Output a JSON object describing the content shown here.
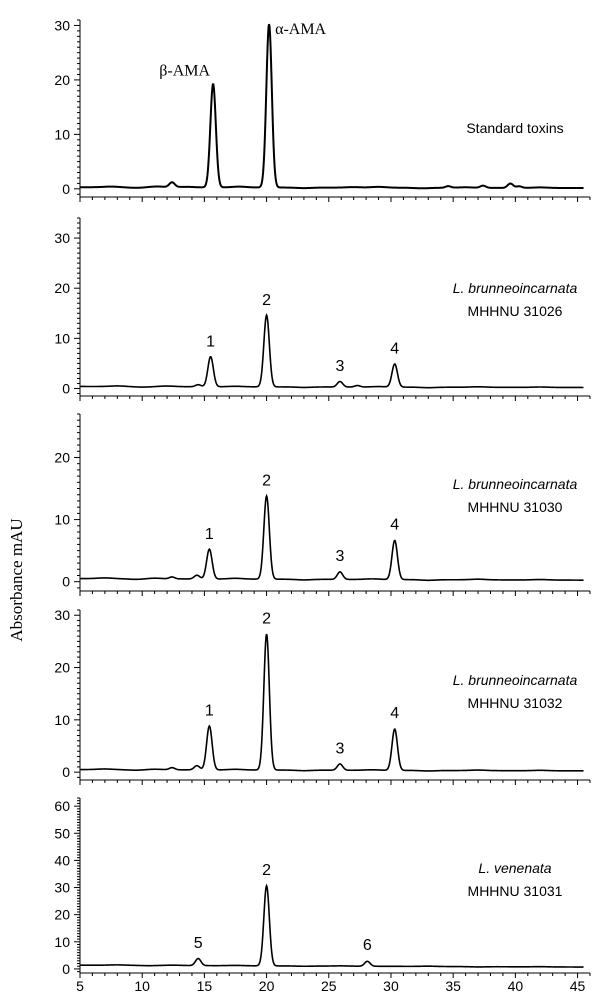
{
  "chart_data": {
    "type": "line",
    "ylabel": "Absorbance  mAU",
    "xlim": [
      5,
      46
    ],
    "x_ticks": [
      5,
      10,
      15,
      20,
      25,
      30,
      35,
      40,
      45
    ],
    "colors": {
      "trace": "#000000",
      "axis": "#000000"
    },
    "panels": [
      {
        "ylim": [
          -1.5,
          31
        ],
        "y_ticks": [
          0,
          10,
          20,
          30
        ],
        "sample_italic": "",
        "sample_plain": "Standard toxins",
        "baseline": 0.3,
        "noise": [
          [
            7.5,
            0.12
          ],
          [
            9.5,
            -0.1
          ],
          [
            11.2,
            0.15
          ],
          [
            13.5,
            0.1
          ],
          [
            17.8,
            0.15
          ],
          [
            23,
            -0.1
          ],
          [
            27,
            0.1
          ],
          [
            29,
            0.15
          ],
          [
            32.5,
            -0.1
          ],
          [
            36,
            0.1
          ],
          [
            42,
            0.1
          ]
        ],
        "peaks": [
          {
            "x": 12.4,
            "height": 0.9,
            "label": "",
            "serif": false
          },
          {
            "x": 15.7,
            "height": 19,
            "label": "β-AMA",
            "serif": true
          },
          {
            "x": 20.2,
            "height": 30,
            "label": "α-AMA",
            "serif": true
          },
          {
            "x": 34.6,
            "height": 0.3,
            "label": "",
            "serif": false
          },
          {
            "x": 37.4,
            "height": 0.4,
            "label": "",
            "serif": false
          },
          {
            "x": 39.6,
            "height": 0.8,
            "label": "",
            "serif": false
          },
          {
            "x": 40.3,
            "height": 0.3,
            "label": "",
            "serif": false
          }
        ]
      },
      {
        "ylim": [
          -1.5,
          34
        ],
        "y_ticks": [
          0,
          10,
          20,
          30
        ],
        "sample_italic": "L. brunneoincarnata",
        "sample_plain": "MHHNU 31026",
        "baseline": 0.4,
        "noise": [
          [
            8,
            0.12
          ],
          [
            10,
            -0.1
          ],
          [
            12,
            0.12
          ],
          [
            17.5,
            0.1
          ],
          [
            23,
            -0.1
          ],
          [
            29,
            0.1
          ],
          [
            33,
            -0.1
          ],
          [
            37,
            0.1
          ],
          [
            42,
            0.08
          ]
        ],
        "peaks": [
          {
            "x": 14.5,
            "height": 0.4,
            "label": "",
            "serif": false
          },
          {
            "x": 15.5,
            "height": 6,
            "label": "1",
            "serif": false
          },
          {
            "x": 20.0,
            "height": 14.3,
            "label": "2",
            "serif": false
          },
          {
            "x": 25.9,
            "height": 1.1,
            "label": "3",
            "serif": false
          },
          {
            "x": 27.3,
            "height": 0.3,
            "label": "",
            "serif": false
          },
          {
            "x": 30.3,
            "height": 4.6,
            "label": "4",
            "serif": false
          }
        ]
      },
      {
        "ylim": [
          -1.5,
          27
        ],
        "y_ticks": [
          0,
          10,
          20
        ],
        "sample_italic": "L. brunneoincarnata",
        "sample_plain": "MHHNU 31030",
        "baseline": 0.5,
        "noise": [
          [
            7,
            0.12
          ],
          [
            9.5,
            -0.1
          ],
          [
            11,
            0.1
          ],
          [
            17.5,
            0.12
          ],
          [
            23,
            -0.1
          ],
          [
            28.5,
            0.1
          ],
          [
            33,
            -0.1
          ],
          [
            37,
            0.1
          ],
          [
            42,
            0.08
          ]
        ],
        "peaks": [
          {
            "x": 12.4,
            "height": 0.3,
            "label": "",
            "serif": false
          },
          {
            "x": 14.4,
            "height": 0.6,
            "label": "",
            "serif": false
          },
          {
            "x": 15.4,
            "height": 4.8,
            "label": "1",
            "serif": false
          },
          {
            "x": 20.0,
            "height": 13.4,
            "label": "2",
            "serif": false
          },
          {
            "x": 25.9,
            "height": 1.2,
            "label": "3",
            "serif": false
          },
          {
            "x": 30.3,
            "height": 6.3,
            "label": "4",
            "serif": false
          }
        ]
      },
      {
        "ylim": [
          -1.5,
          31
        ],
        "y_ticks": [
          0,
          10,
          20,
          30
        ],
        "sample_italic": "L. brunneoincarnata",
        "sample_plain": "MHHNU 31032",
        "baseline": 0.5,
        "noise": [
          [
            7,
            0.12
          ],
          [
            9.5,
            -0.1
          ],
          [
            11,
            0.1
          ],
          [
            17.5,
            0.12
          ],
          [
            23,
            -0.1
          ],
          [
            28.5,
            0.1
          ],
          [
            33,
            -0.1
          ],
          [
            37,
            0.1
          ],
          [
            42,
            0.08
          ]
        ],
        "peaks": [
          {
            "x": 12.4,
            "height": 0.4,
            "label": "",
            "serif": false
          },
          {
            "x": 14.4,
            "height": 0.8,
            "label": "",
            "serif": false
          },
          {
            "x": 15.4,
            "height": 8.4,
            "label": "1",
            "serif": false
          },
          {
            "x": 20.0,
            "height": 26,
            "label": "2",
            "serif": false
          },
          {
            "x": 25.9,
            "height": 1.2,
            "label": "3",
            "serif": false
          },
          {
            "x": 30.3,
            "height": 7.9,
            "label": "4",
            "serif": false
          }
        ]
      },
      {
        "ylim": [
          -1.5,
          63
        ],
        "y_ticks": [
          0,
          10,
          20,
          30,
          40,
          50,
          60
        ],
        "sample_italic": "L. venenata",
        "sample_plain": "MHHNU 31031",
        "baseline": 1.4,
        "noise": [
          [
            8,
            0.15
          ],
          [
            10.5,
            -0.1
          ],
          [
            12.5,
            0.12
          ],
          [
            17.5,
            0.12
          ],
          [
            23,
            -0.1
          ],
          [
            26,
            0.1
          ],
          [
            33,
            0.1
          ],
          [
            37,
            -0.1
          ],
          [
            42,
            0.08
          ]
        ],
        "peaks": [
          {
            "x": 14.5,
            "height": 2.6,
            "label": "5",
            "serif": false
          },
          {
            "x": 20.0,
            "height": 29.5,
            "label": "2",
            "serif": false
          },
          {
            "x": 28.1,
            "height": 1.8,
            "label": "6",
            "serif": false
          }
        ]
      }
    ]
  }
}
